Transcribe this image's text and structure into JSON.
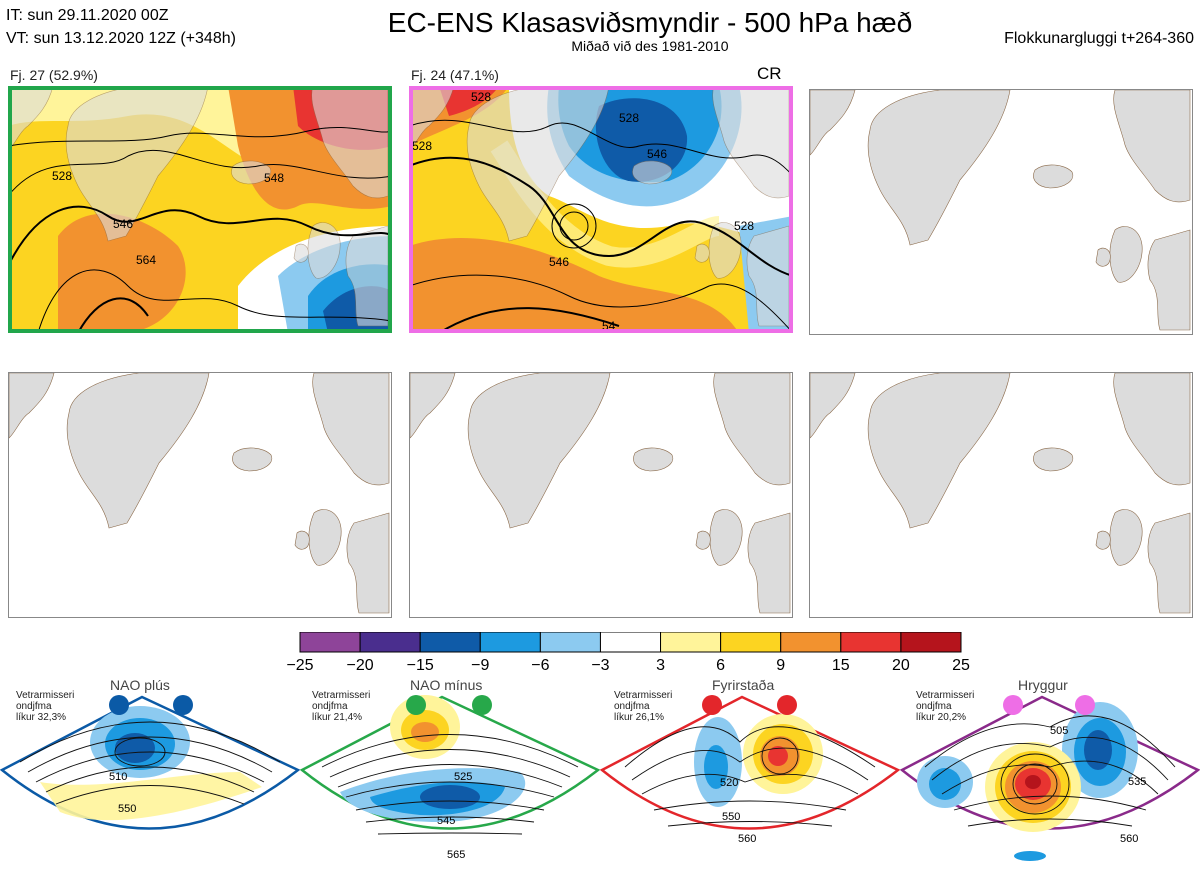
{
  "header": {
    "init_time": "IT: sun 29.11.2020 00Z",
    "valid_time": "VT: sun 13.12.2020 12Z  (+348h)",
    "title": "EC-ENS Klasasviðsmyndir - 500 hPa hæð",
    "subtitle": "Miðað við des 1981-2010",
    "window": "Flokkunargluggi t+264-360"
  },
  "panels": [
    {
      "label": "Fj. 27 (52.9%)",
      "frame_color": "#21a64b",
      "tag": "",
      "contour_labels": [
        "528",
        "546",
        "564",
        "548"
      ]
    },
    {
      "label": "Fj. 24 (47.1%)",
      "frame_color": "#ee6ee6",
      "tag": "CR",
      "contour_labels": [
        "528",
        "528",
        "546",
        "528",
        "546",
        "528",
        "54"
      ]
    },
    {
      "label": "",
      "frame_color": "#888888",
      "tag": "",
      "contour_labels": []
    },
    {
      "label": "",
      "frame_color": "#888888",
      "tag": "",
      "contour_labels": []
    },
    {
      "label": "",
      "frame_color": "#888888",
      "tag": "",
      "contour_labels": []
    },
    {
      "label": "",
      "frame_color": "#888888",
      "tag": "",
      "contour_labels": []
    }
  ],
  "colorbar": {
    "ticks": [
      "−25",
      "−20",
      "−15",
      "−9",
      "−6",
      "−3",
      "3",
      "6",
      "9",
      "15",
      "20",
      "25"
    ],
    "colors": [
      "#8e4499",
      "#4a2e8e",
      "#0f5ba8",
      "#1d9ae0",
      "#8ccaf0",
      "#ffffff",
      "#fff49a",
      "#fcd421",
      "#f2922f",
      "#e83431",
      "#b5141c"
    ]
  },
  "regimes": [
    {
      "name": "NAO plús",
      "note_lines": [
        "Vetrarmisseri",
        "ondjfma",
        "líkur 32,3%"
      ],
      "border": "#0b5aa6",
      "dot": "#0b5aa6",
      "labels": [
        "510",
        "550"
      ]
    },
    {
      "name": "NAO mínus",
      "note_lines": [
        "Vetrarmisseri",
        "ondjfma",
        "líkur 21,4%"
      ],
      "border": "#27a84a",
      "dot": "#27a84a",
      "labels": [
        "525",
        "545",
        "565"
      ]
    },
    {
      "name": "Fyrirstaða",
      "note_lines": [
        "Vetrarmisseri",
        "ondjfma",
        "líkur 26,1%"
      ],
      "border": "#e3262b",
      "dot": "#e3262b",
      "labels": [
        "520",
        "550",
        "560"
      ]
    },
    {
      "name": "Hryggur",
      "note_lines": [
        "Vetrarmisseri",
        "ondjfma",
        "líkur 20,2%"
      ],
      "border": "#8a2a8a",
      "dot": "#ee6ee6",
      "labels": [
        "505",
        "535",
        "560"
      ]
    }
  ]
}
